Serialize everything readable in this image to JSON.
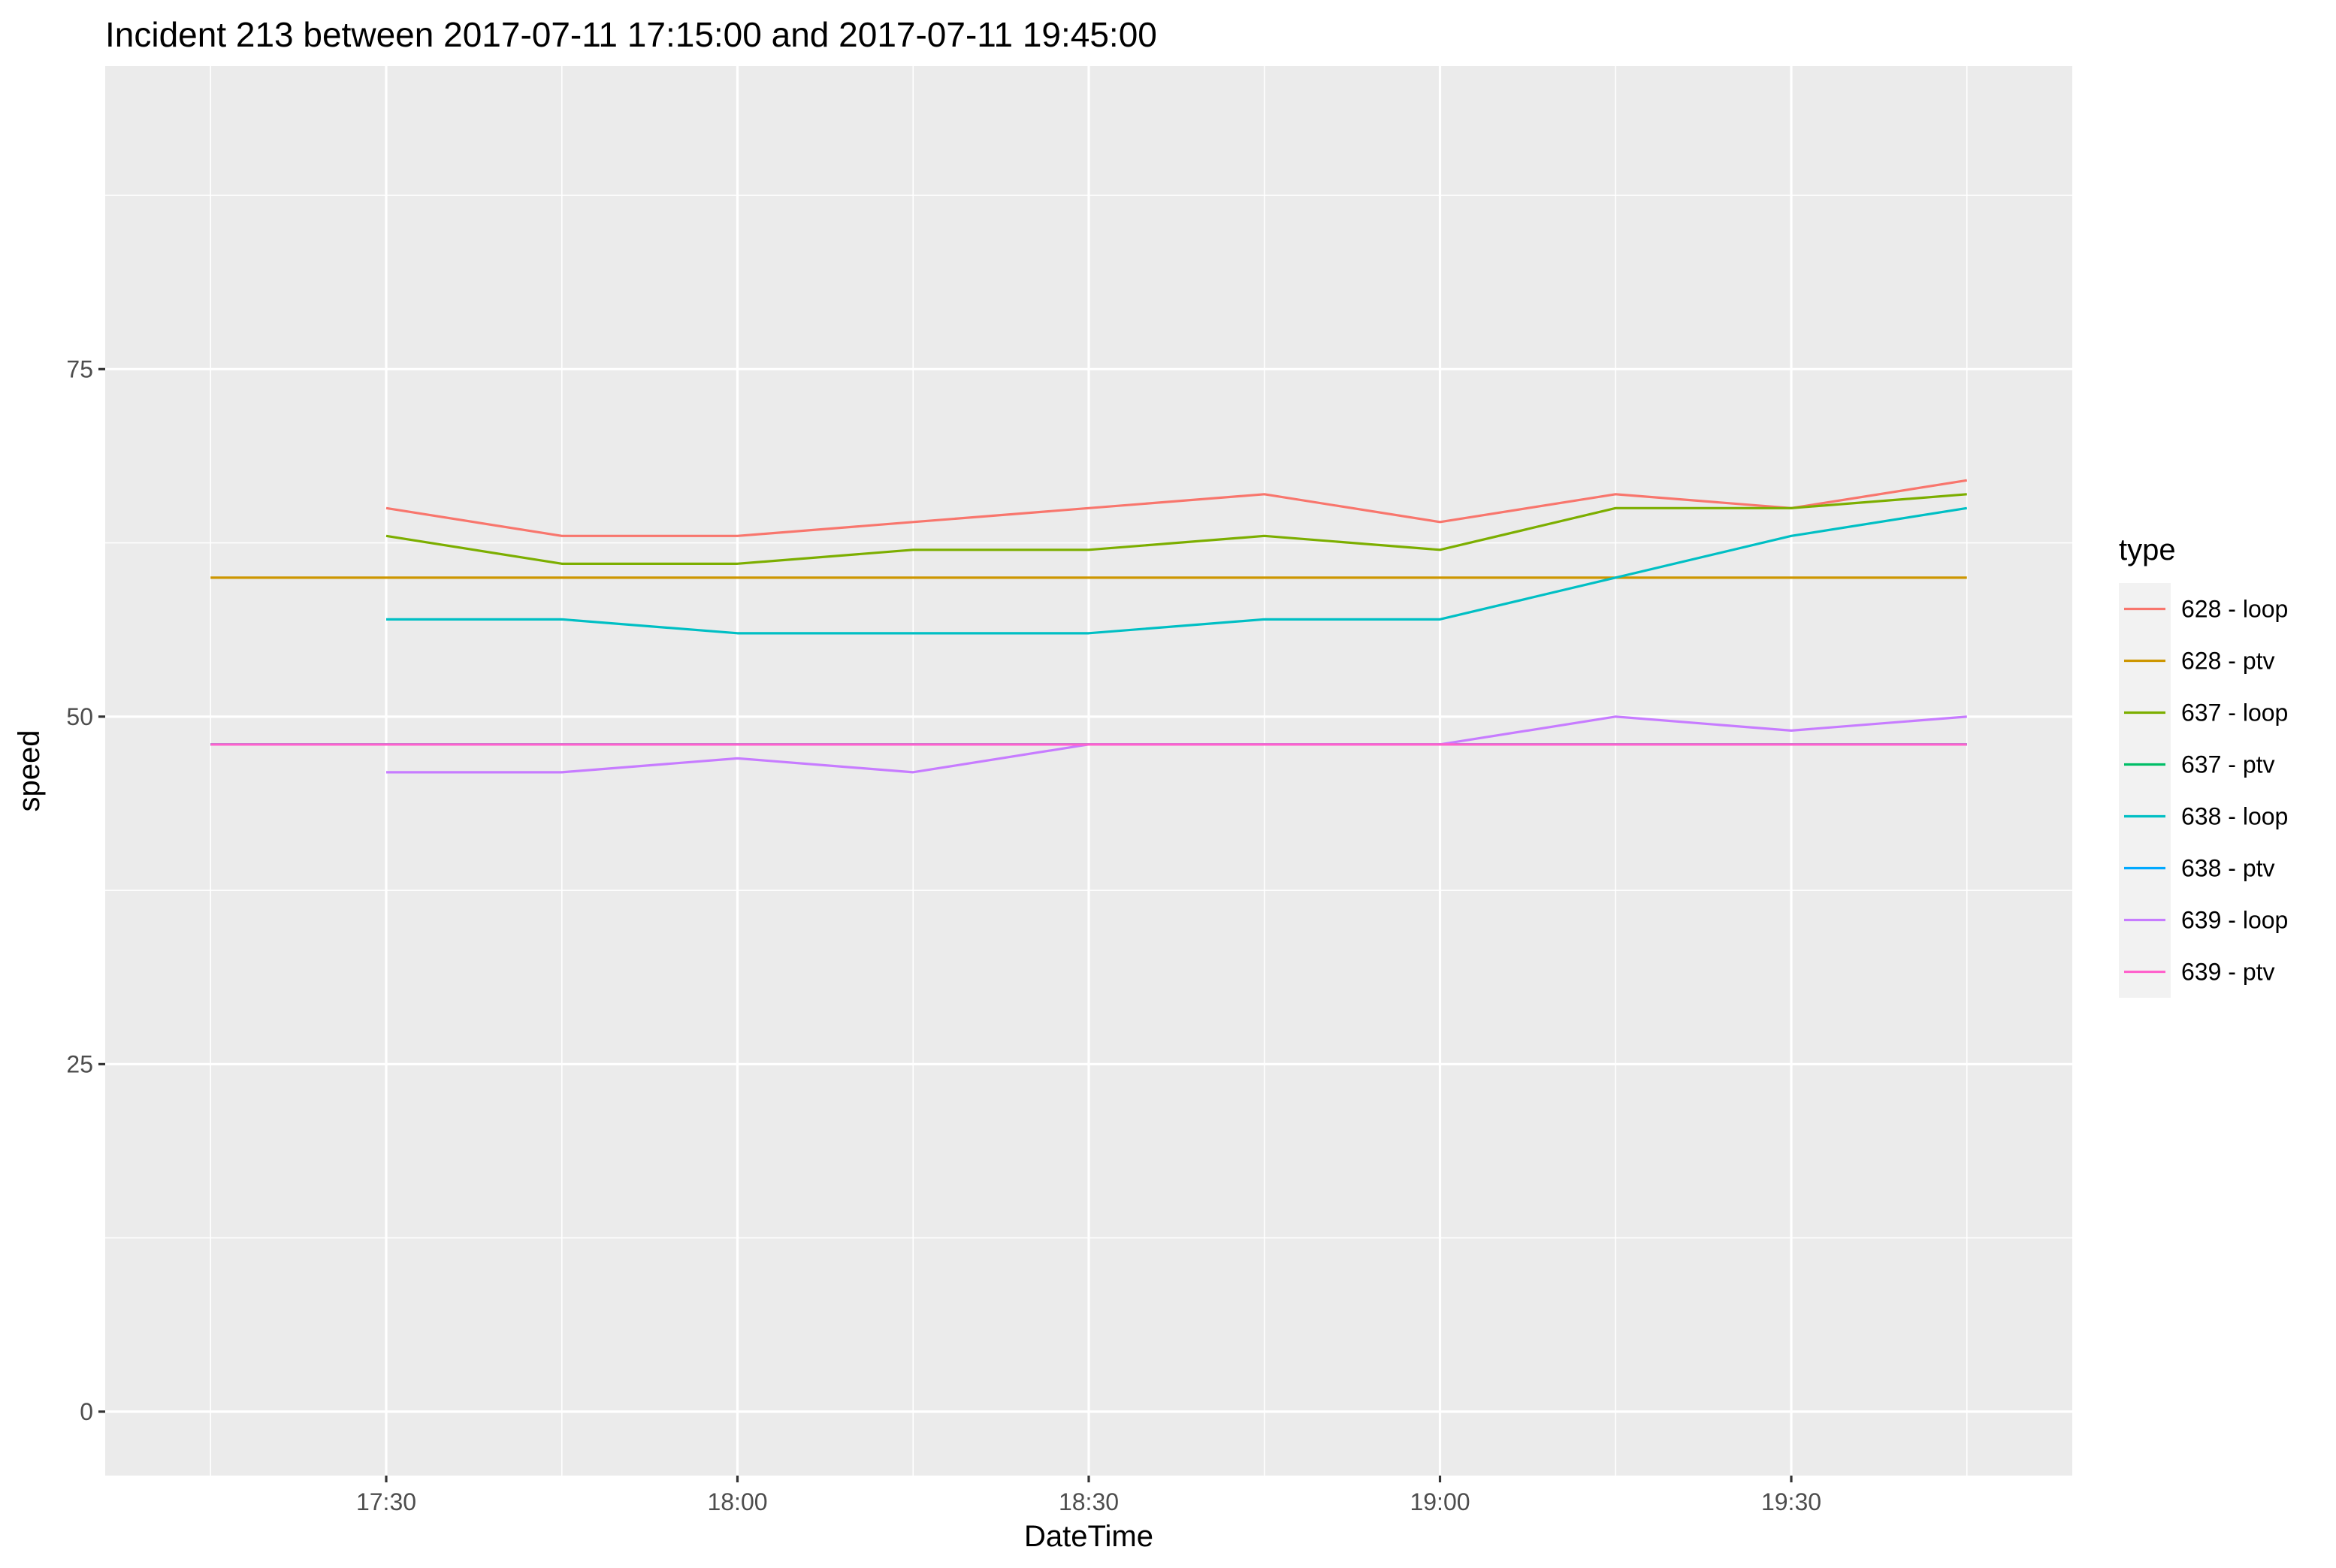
{
  "chart_data": {
    "type": "line",
    "title": "Incident 213 between 2017-07-11 17:15:00 and 2017-07-11 19:45:00",
    "xlabel": "DateTime",
    "ylabel": "speed",
    "x": [
      "17:15",
      "17:30",
      "17:45",
      "18:00",
      "18:15",
      "18:30",
      "18:45",
      "19:00",
      "19:15",
      "19:30",
      "19:45"
    ],
    "x_ticks": [
      "17:30",
      "18:00",
      "18:30",
      "19:00",
      "19:30"
    ],
    "xlim": [
      "17:06",
      "19:54"
    ],
    "y_ticks": [
      0,
      25,
      50,
      75
    ],
    "ylim": [
      -4.6,
      96.8
    ],
    "grid": true,
    "legend": {
      "title": "type",
      "position": "right"
    },
    "series": [
      {
        "name": "628 - loop",
        "color": "#F8766D",
        "values": [
          null,
          65,
          63,
          63,
          64,
          65,
          66,
          64,
          66,
          65,
          67
        ]
      },
      {
        "name": "628 - ptv",
        "color": "#CD9600",
        "values": [
          60,
          60,
          60,
          60,
          60,
          60,
          60,
          60,
          60,
          60,
          60
        ]
      },
      {
        "name": "637 - loop",
        "color": "#7CAE00",
        "values": [
          null,
          63,
          61,
          61,
          62,
          62,
          63,
          62,
          65,
          65,
          66
        ]
      },
      {
        "name": "637 - ptv",
        "color": "#00BE67",
        "values": [
          48,
          48,
          48,
          48,
          48,
          48,
          48,
          48,
          48,
          48,
          48
        ]
      },
      {
        "name": "638 - loop",
        "color": "#00BFC4",
        "values": [
          null,
          57,
          57,
          56,
          56,
          56,
          57,
          57,
          60,
          63,
          65
        ]
      },
      {
        "name": "638 - ptv",
        "color": "#00A9FF",
        "values": [
          48,
          48,
          48,
          48,
          48,
          48,
          48,
          48,
          48,
          48,
          48
        ]
      },
      {
        "name": "639 - loop",
        "color": "#C77CFF",
        "values": [
          null,
          46,
          46,
          47,
          46,
          48,
          48,
          48,
          50,
          49,
          50
        ]
      },
      {
        "name": "639 - ptv",
        "color": "#FF61CC",
        "values": [
          48,
          48,
          48,
          48,
          48,
          48,
          48,
          48,
          48,
          48,
          48
        ]
      }
    ]
  }
}
